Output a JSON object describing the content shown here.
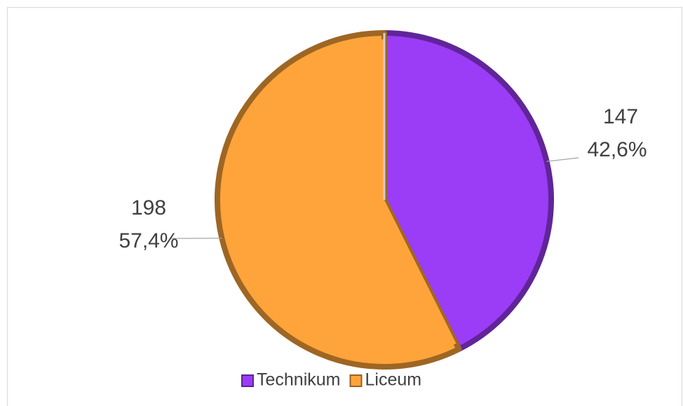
{
  "chart_data": {
    "type": "pie",
    "categories": [
      "Technikum",
      "Liceum"
    ],
    "values": [
      147,
      198
    ],
    "colors": [
      "#9b3cf7",
      "#ffa43a"
    ],
    "percents": [
      42.6,
      57.4
    ],
    "percent_labels": [
      "42,6%",
      "57,4%"
    ],
    "legend": "bottom"
  }
}
